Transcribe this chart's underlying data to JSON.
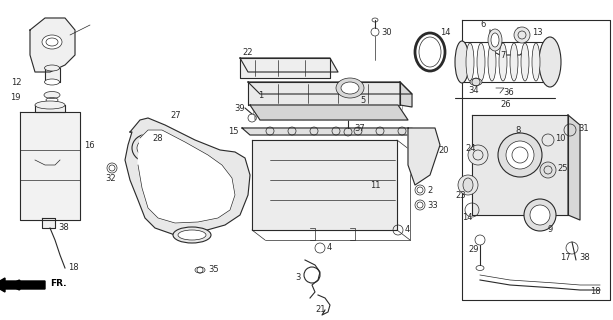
{
  "bg_color": "#ffffff",
  "line_color": "#2a2a2a",
  "fig_width": 6.13,
  "fig_height": 3.2,
  "dpi": 100,
  "parts": {
    "part12_label": "12",
    "part19_label": "19",
    "part16_label": "16",
    "part32_label": "32",
    "part38a_label": "38",
    "part18a_label": "18",
    "part27_label": "27",
    "part28_label": "28",
    "part35_label": "35",
    "part1_label": "1",
    "part22_label": "22",
    "part30_label": "30",
    "part5_label": "5",
    "part37_label": "37",
    "part39_label": "39",
    "part15_label": "15",
    "part11_label": "11",
    "part20_label": "20",
    "part2_label": "2",
    "part33_label": "33",
    "part4a_label": "4",
    "part4b_label": "4",
    "part3_label": "3",
    "part21_label": "21",
    "part14_label": "14",
    "part7_label": "7",
    "part34_label": "34",
    "part36_label": "36",
    "part26_label": "26",
    "part6_label": "6",
    "part13_label": "13",
    "part8_label": "8",
    "part9_label": "9",
    "part10_label": "10",
    "part23_label": "23",
    "part24_label": "24",
    "part25_label": "25",
    "part29_label": "29",
    "part31_label": "31",
    "part17_label": "17",
    "part38b_label": "38",
    "part18b_label": "18"
  }
}
